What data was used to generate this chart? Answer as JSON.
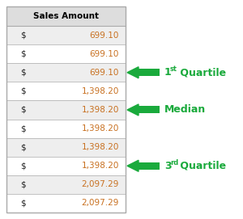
{
  "header": "Sales Amount",
  "col1": [
    "$",
    "$",
    "$",
    "$",
    "$",
    "$",
    "$",
    "$",
    "$",
    "$"
  ],
  "col2": [
    "699.10",
    "699.10",
    "699.10",
    "1,398.20",
    "1,398.20",
    "1,398.20",
    "1,398.20",
    "1,398.20",
    "2,097.29",
    "2,097.29"
  ],
  "arrow_rows": [
    2,
    4,
    7
  ],
  "annotation_labels": [
    {
      "num": "1",
      "sup": "st",
      "rest": " Quartile"
    },
    {
      "num": "Median",
      "sup": "",
      "rest": ""
    },
    {
      "num": "3",
      "sup": "rd",
      "rest": " Quartile"
    }
  ],
  "arrow_color": "#1aaa3c",
  "header_color": "#000000",
  "num_color": "#c87020",
  "dollar_color": "#222222",
  "border_color": "#aaaaaa",
  "bg_color": "#ffffff",
  "row_bg_alt": "#eeeeee",
  "header_bg": "#dddddd"
}
